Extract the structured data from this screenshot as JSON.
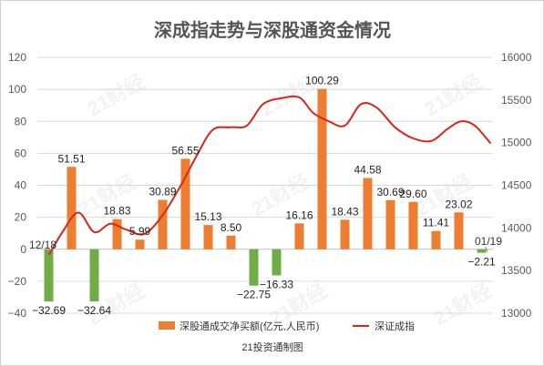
{
  "chart_data": {
    "type": "bar",
    "title": "深成指走势与深股通资金情况",
    "source": "21投资通制图",
    "watermark": "21财经",
    "start_label": "12/18",
    "end_label": "01/19",
    "left_axis": {
      "min": -40,
      "max": 120,
      "ticks": [
        -40,
        -20,
        0,
        20,
        40,
        60,
        80,
        100,
        120
      ]
    },
    "right_axis": {
      "min": 13000,
      "max": 16000,
      "ticks": [
        13000,
        13500,
        14000,
        14500,
        15000,
        15500,
        16000
      ]
    },
    "bars": {
      "name": "深股通成交净买额(亿元,人民币)",
      "pos_color": "#ED7D31",
      "neg_color": "#70AD47",
      "values": [
        -32.69,
        51.51,
        -32.64,
        18.83,
        5.99,
        30.89,
        56.55,
        15.13,
        8.5,
        -22.75,
        -16.33,
        16.16,
        100.29,
        18.43,
        44.58,
        30.69,
        29.6,
        11.41,
        23.02,
        -2.21
      ],
      "labels": [
        "−32.69",
        "51.51",
        "−32.64",
        "18.83",
        "5.99",
        "30.89",
        "56.55",
        "15.13",
        "8.50",
        "−22.75",
        "−16.33",
        "16.16",
        "100.29",
        "18.43",
        "44.58",
        "30.69",
        "29.60",
        "11.41",
        "23.02",
        "−2.21"
      ]
    },
    "line": {
      "name": "深证成指",
      "color": "#D9261C",
      "x": [
        0,
        0.6,
        1.3,
        2,
        2.7,
        3.4,
        4.2,
        5,
        5.8,
        6.5,
        7.2,
        8,
        8.7,
        9.4,
        10.2,
        11,
        11.6,
        12.3,
        13,
        13.7,
        14.4,
        15.2,
        16,
        16.8,
        17.5,
        18.1,
        18.7,
        19.4
      ],
      "y": [
        13680,
        13950,
        14180,
        13950,
        14050,
        13980,
        13930,
        14150,
        14500,
        14850,
        15150,
        15180,
        15200,
        15450,
        15520,
        15530,
        15350,
        15250,
        15200,
        15450,
        15410,
        15180,
        15050,
        15020,
        15160,
        15250,
        15200,
        14990
      ]
    }
  }
}
